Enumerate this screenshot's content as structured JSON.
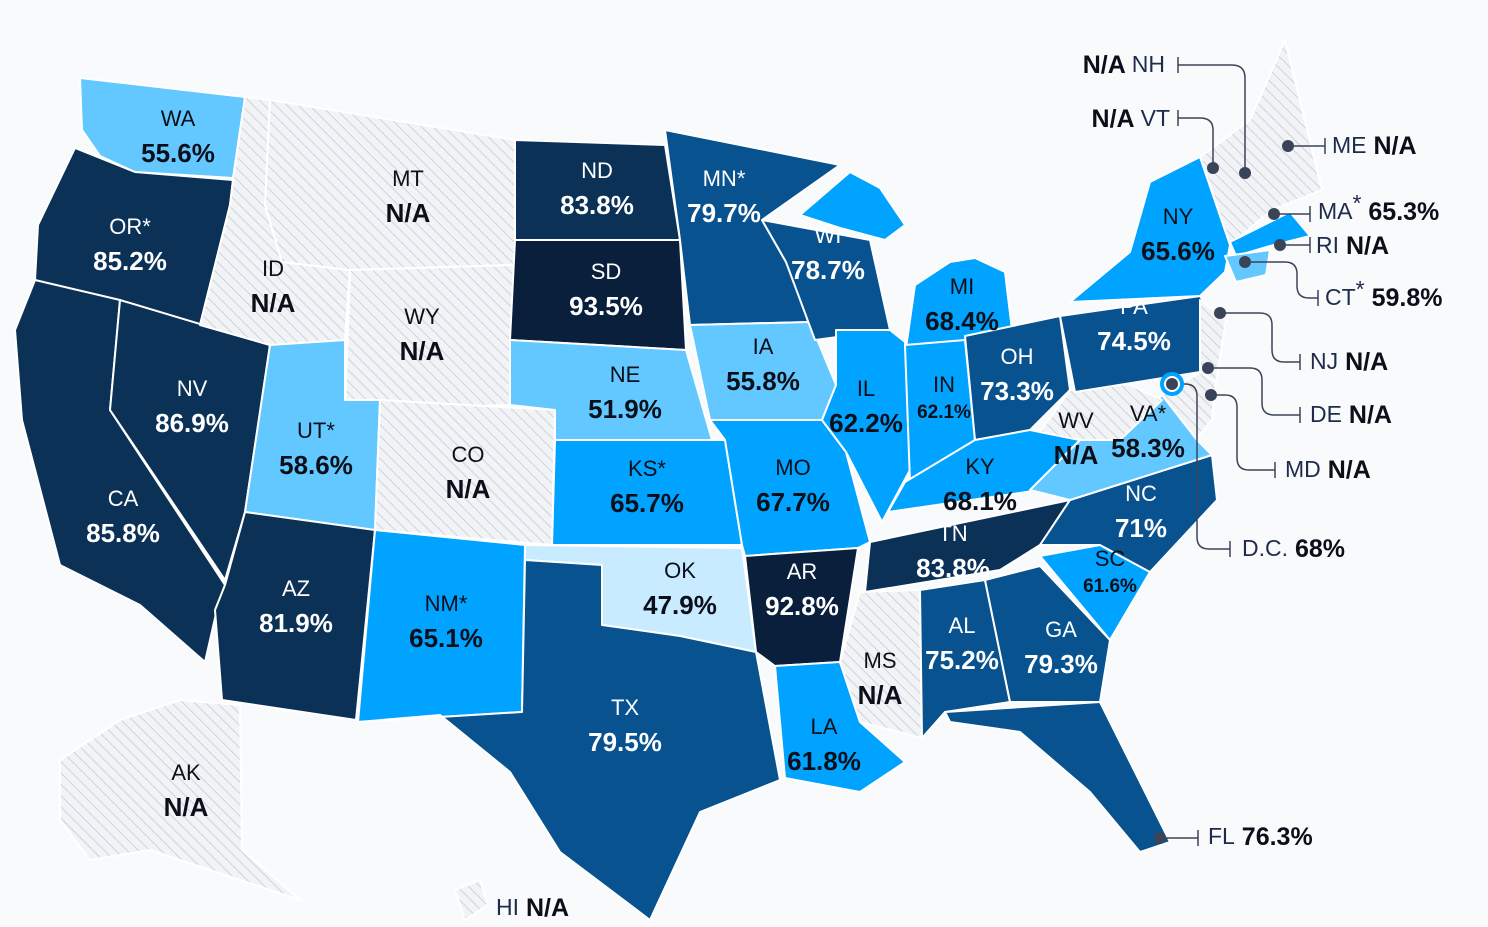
{
  "colors": {
    "background": "#f8fafc",
    "tier_darkest": "#0a1f3c",
    "tier_dark": "#0b3157",
    "tier_medium": "#08528f",
    "tier_bright": "#00a3ff",
    "tier_light": "#62c8ff",
    "tier_lightest": "#c9ebff",
    "no_data_hatch": "#cfd3d9",
    "leader_line": "#3a4458"
  },
  "states": [
    {
      "abbr": "WA",
      "value": "55.6%",
      "asterisk": false,
      "tier": "light"
    },
    {
      "abbr": "OR",
      "value": "85.2%",
      "asterisk": true,
      "tier": "dark"
    },
    {
      "abbr": "CA",
      "value": "85.8%",
      "asterisk": false,
      "tier": "dark"
    },
    {
      "abbr": "NV",
      "value": "86.9%",
      "asterisk": false,
      "tier": "dark"
    },
    {
      "abbr": "ID",
      "value": "N/A",
      "asterisk": false,
      "tier": "na"
    },
    {
      "abbr": "MT",
      "value": "N/A",
      "asterisk": false,
      "tier": "na"
    },
    {
      "abbr": "WY",
      "value": "N/A",
      "asterisk": false,
      "tier": "na"
    },
    {
      "abbr": "UT",
      "value": "58.6%",
      "asterisk": true,
      "tier": "light"
    },
    {
      "abbr": "CO",
      "value": "N/A",
      "asterisk": false,
      "tier": "na"
    },
    {
      "abbr": "AZ",
      "value": "81.9%",
      "asterisk": false,
      "tier": "dark"
    },
    {
      "abbr": "NM",
      "value": "65.1%",
      "asterisk": true,
      "tier": "bright"
    },
    {
      "abbr": "ND",
      "value": "83.8%",
      "asterisk": false,
      "tier": "dark"
    },
    {
      "abbr": "SD",
      "value": "93.5%",
      "asterisk": false,
      "tier": "darkest"
    },
    {
      "abbr": "NE",
      "value": "51.9%",
      "asterisk": false,
      "tier": "light"
    },
    {
      "abbr": "KS",
      "value": "65.7%",
      "asterisk": true,
      "tier": "bright"
    },
    {
      "abbr": "OK",
      "value": "47.9%",
      "asterisk": false,
      "tier": "lightest"
    },
    {
      "abbr": "TX",
      "value": "79.5%",
      "asterisk": false,
      "tier": "medium"
    },
    {
      "abbr": "MN",
      "value": "79.7%",
      "asterisk": true,
      "tier": "medium"
    },
    {
      "abbr": "IA",
      "value": "55.8%",
      "asterisk": false,
      "tier": "light"
    },
    {
      "abbr": "WI",
      "value": "78.7%",
      "asterisk": false,
      "tier": "medium"
    },
    {
      "abbr": "MO",
      "value": "67.7%",
      "asterisk": false,
      "tier": "bright"
    },
    {
      "abbr": "AR",
      "value": "92.8%",
      "asterisk": false,
      "tier": "darkest"
    },
    {
      "abbr": "LA",
      "value": "61.8%",
      "asterisk": false,
      "tier": "bright"
    },
    {
      "abbr": "MI",
      "value": "68.4%",
      "asterisk": false,
      "tier": "bright"
    },
    {
      "abbr": "IL",
      "value": "62.2%",
      "asterisk": false,
      "tier": "bright"
    },
    {
      "abbr": "IN",
      "value": "62.1%",
      "asterisk": false,
      "tier": "bright"
    },
    {
      "abbr": "OH",
      "value": "73.3%",
      "asterisk": false,
      "tier": "medium"
    },
    {
      "abbr": "KY",
      "value": "68.1%",
      "asterisk": false,
      "tier": "bright"
    },
    {
      "abbr": "TN",
      "value": "83.8%",
      "asterisk": false,
      "tier": "dark"
    },
    {
      "abbr": "MS",
      "value": "N/A",
      "asterisk": false,
      "tier": "na"
    },
    {
      "abbr": "AL",
      "value": "75.2%",
      "asterisk": false,
      "tier": "medium"
    },
    {
      "abbr": "GA",
      "value": "79.3%",
      "asterisk": false,
      "tier": "medium"
    },
    {
      "abbr": "FL",
      "value": "76.3%",
      "asterisk": false,
      "tier": "medium"
    },
    {
      "abbr": "SC",
      "value": "61.6%",
      "asterisk": false,
      "tier": "bright"
    },
    {
      "abbr": "NC",
      "value": "71%",
      "asterisk": false,
      "tier": "medium"
    },
    {
      "abbr": "VA",
      "value": "58.3%",
      "asterisk": true,
      "tier": "light"
    },
    {
      "abbr": "WV",
      "value": "N/A",
      "asterisk": false,
      "tier": "na"
    },
    {
      "abbr": "PA",
      "value": "74.5%",
      "asterisk": false,
      "tier": "medium"
    },
    {
      "abbr": "NY",
      "value": "65.6%",
      "asterisk": false,
      "tier": "bright"
    },
    {
      "abbr": "VT",
      "value": "N/A",
      "asterisk": false,
      "tier": "na"
    },
    {
      "abbr": "NH",
      "value": "N/A",
      "asterisk": false,
      "tier": "na"
    },
    {
      "abbr": "ME",
      "value": "N/A",
      "asterisk": false,
      "tier": "na"
    },
    {
      "abbr": "MA",
      "value": "65.3%",
      "asterisk": true,
      "tier": "bright"
    },
    {
      "abbr": "RI",
      "value": "N/A",
      "asterisk": false,
      "tier": "na"
    },
    {
      "abbr": "CT",
      "value": "59.8%",
      "asterisk": true,
      "tier": "light"
    },
    {
      "abbr": "NJ",
      "value": "N/A",
      "asterisk": false,
      "tier": "na"
    },
    {
      "abbr": "DE",
      "value": "N/A",
      "asterisk": false,
      "tier": "na"
    },
    {
      "abbr": "MD",
      "value": "N/A",
      "asterisk": false,
      "tier": "na"
    },
    {
      "abbr": "D.C.",
      "value": "68%",
      "asterisk": false,
      "tier": "bright"
    },
    {
      "abbr": "AK",
      "value": "N/A",
      "asterisk": false,
      "tier": "na"
    },
    {
      "abbr": "HI",
      "value": "N/A",
      "asterisk": false,
      "tier": "na"
    }
  ]
}
